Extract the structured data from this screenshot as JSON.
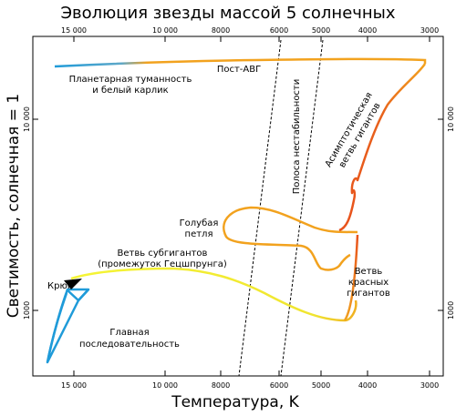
{
  "title": "Эволюция звезды массой 5 солнечных",
  "x_axis_label": "Температура, K",
  "y_axis_label": "Светимость, солнечная = 1",
  "x_ticks": [
    "15 000",
    "10 000",
    "8000",
    "6000",
    "5000",
    "4000",
    "3000"
  ],
  "y_ticks": [
    "10 000",
    "1000"
  ],
  "labels": {
    "planetary_nebula_1": "Планетарная туманность",
    "planetary_nebula_2": "и белый карлик",
    "post_agb": "Пост-АВГ",
    "instability_strip": "Полоса нестабильности",
    "agb_1": "Асимптотическая",
    "agb_2": "ветвь гигантов",
    "blue_loop_1": "Голубая",
    "blue_loop_2": "петля",
    "subgiant_1": "Ветвь субгигантов",
    "subgiant_2": "(промежуток Гецшпрунга)",
    "hook": "Крюк",
    "main_sequence_1": "Главная",
    "main_sequence_2": "последовательность",
    "red_giant_1": "Ветвь",
    "red_giant_2": "красных",
    "red_giant_3": "гигантов"
  },
  "colors": {
    "main_sequence": "#1f9bd9",
    "hot_post_agb": "#1f9bd9",
    "subgiant": "#f2f23a",
    "blue_loop": "#f2a21e",
    "post_agb": "#f2a21e",
    "red_giant": "#e8521c",
    "agb": "#e8521c",
    "frame": "#000000"
  }
}
